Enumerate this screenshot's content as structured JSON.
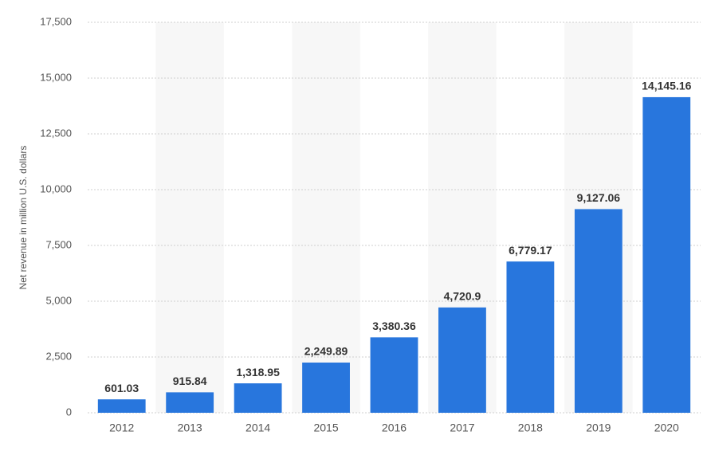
{
  "chart_data": {
    "type": "bar",
    "y_label": "Net revenue in million U.S. dollars",
    "categories": [
      "2012",
      "2013",
      "2014",
      "2015",
      "2016",
      "2017",
      "2018",
      "2019",
      "2020"
    ],
    "values": [
      601.03,
      915.84,
      1318.95,
      2249.89,
      3380.36,
      4720.9,
      6779.17,
      9127.06,
      14145.16
    ],
    "value_labels": [
      "601.03",
      "915.84",
      "1,318.95",
      "2,249.89",
      "3,380.36",
      "4,720.9",
      "6,779.17",
      "9,127.06",
      "14,145.16"
    ],
    "color": "#2876dd",
    "ylim": [
      0,
      17500
    ],
    "yticks": [
      0,
      {
        "value": 2500,
        "label": "2,500"
      },
      {
        "value": 5000,
        "label": "5,000"
      },
      {
        "value": 7500,
        "label": "7,500"
      },
      {
        "value": 10000,
        "label": "10,000"
      },
      {
        "value": 12500,
        "label": "12,500"
      },
      {
        "value": 15000,
        "label": "15,000"
      },
      {
        "value": 17500,
        "label": "17,500"
      }
    ],
    "grid": true
  }
}
